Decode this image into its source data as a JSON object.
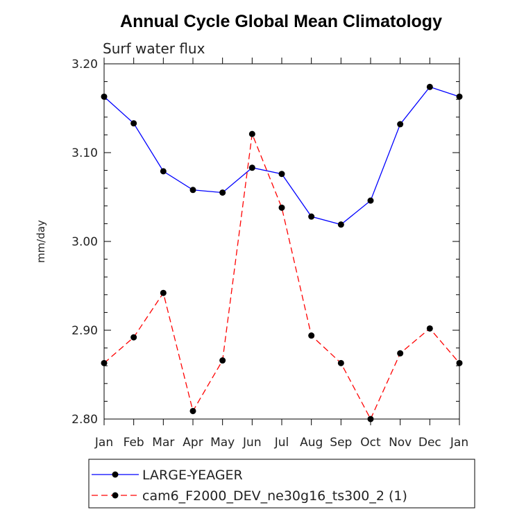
{
  "chart_data": {
    "type": "line",
    "title": "Annual Cycle Global Mean Climatology",
    "subtitle": "Surf water flux",
    "xlabel": "",
    "ylabel": "mm/day",
    "categories": [
      "Jan",
      "Feb",
      "Mar",
      "Apr",
      "May",
      "Jun",
      "Jul",
      "Aug",
      "Sep",
      "Oct",
      "Nov",
      "Dec",
      "Jan"
    ],
    "ylim": [
      2.8,
      3.2
    ],
    "yticks": [
      2.8,
      2.9,
      3.0,
      3.1,
      3.2
    ],
    "ytick_labels": [
      "2.80",
      "2.90",
      "3.00",
      "3.10",
      "3.20"
    ],
    "grid": false,
    "legend_position": "bottom",
    "series": [
      {
        "name": "LARGE-YEAGER",
        "color": "#0000ff",
        "dash": "solid",
        "values": [
          3.163,
          3.133,
          3.079,
          3.058,
          3.055,
          3.083,
          3.076,
          3.028,
          3.019,
          3.046,
          3.132,
          3.174,
          3.163
        ]
      },
      {
        "name": "cam6_F2000_DEV_ne30g16_ts300_2 (1)",
        "color": "#ff0000",
        "dash": "dashed",
        "values": [
          2.863,
          2.892,
          2.942,
          2.809,
          2.866,
          3.121,
          3.038,
          2.894,
          2.863,
          2.8,
          2.874,
          2.902,
          2.863
        ]
      }
    ]
  }
}
